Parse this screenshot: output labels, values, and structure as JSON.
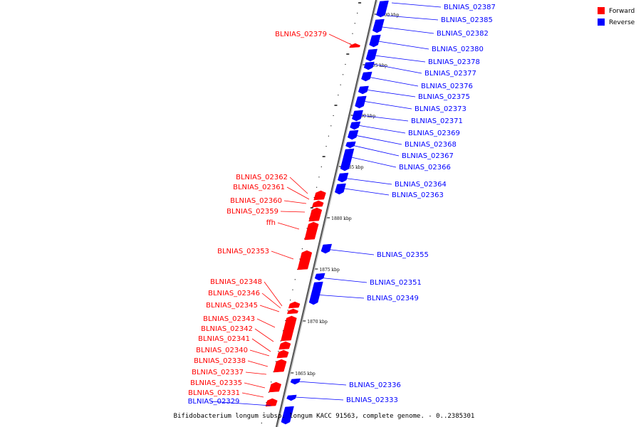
{
  "legend": {
    "forward_label": "Forward",
    "reverse_label": "Reverse",
    "forward_color": "#ff0000",
    "reverse_color": "#0000ff"
  },
  "caption": "Bifidobacterium longum subsp. longum KACC 91563, complete genome. - 0..2385301",
  "scale_labels": [
    "1900 kbp",
    "1895 kbp",
    "1890 kbp",
    "1885 kbp",
    "1880 kbp",
    "1875 kbp",
    "1870 kbp",
    "1865 kbp"
  ],
  "reverse_genes": [
    "BLNIAS_02387",
    "BLNIAS_02385",
    "BLNIAS_02382",
    "BLNIAS_02380",
    "BLNIAS_02378",
    "BLNIAS_02377",
    "BLNIAS_02376",
    "BLNIAS_02375",
    "BLNIAS_02373",
    "BLNIAS_02371",
    "BLNIAS_02369",
    "BLNIAS_02368",
    "BLNIAS_02367",
    "BLNIAS_02366",
    "BLNIAS_02364",
    "BLNIAS_02363",
    "BLNIAS_02355",
    "BLNIAS_02351",
    "BLNIAS_02349",
    "BLNIAS_02336",
    "BLNIAS_02333",
    "BLNIAS_02329"
  ],
  "forward_genes": [
    "BLNIAS_02379",
    "BLNIAS_02362",
    "BLNIAS_02361",
    "BLNIAS_02360",
    "BLNIAS_02359",
    "ffh",
    "BLNIAS_02353",
    "BLNIAS_02348",
    "BLNIAS_02346",
    "BLNIAS_02345",
    "BLNIAS_02343",
    "BLNIAS_02342",
    "BLNIAS_02341",
    "BLNIAS_02340",
    "BLNIAS_02338",
    "BLNIAS_02337",
    "BLNIAS_02335",
    "BLNIAS_02331"
  ]
}
